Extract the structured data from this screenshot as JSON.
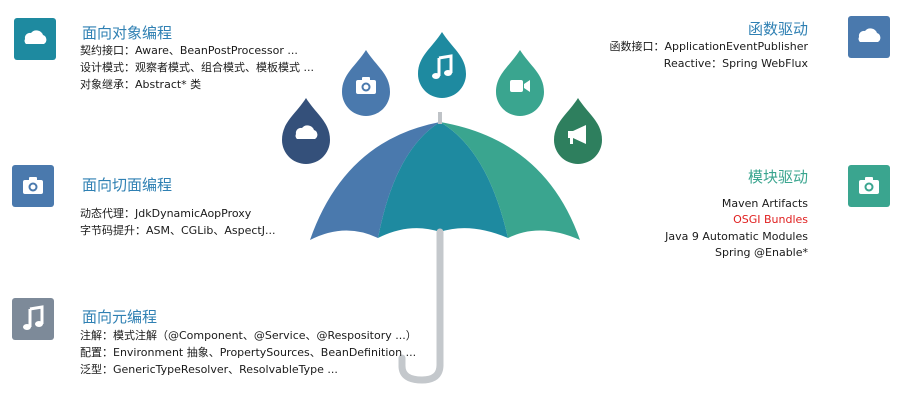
{
  "colors": {
    "blue_dark": "#2f5d8a",
    "blue_mid": "#4a79ad",
    "teal": "#1e8aa0",
    "green": "#3aa58f",
    "green_dark": "#2e7f5e",
    "navy": "#34507a",
    "gray_icon": "#7d8a99",
    "title_blue": "#2f80b3",
    "title_green": "#3aa58f",
    "osgi_red": "#e02020"
  },
  "sections": {
    "oop": {
      "title": "面向对象编程",
      "lines": [
        "契约接口：Aware、BeanPostProcessor ...",
        "设计模式：观察者模式、组合模式、模板模式 ...",
        "对象继承：Abstract* 类"
      ]
    },
    "aop": {
      "title": "面向切面编程",
      "lines": [
        "动态代理：JdkDynamicAopProxy",
        "字节码提升：ASM、CGLib、AspectJ..."
      ]
    },
    "meta": {
      "title": "面向元编程",
      "lines": [
        "注解：模式注解（@Component、@Service、@Respository ...）",
        "配置：Environment 抽象、PropertySources、BeanDefinition ...",
        "泛型：GenericTypeResolver、ResolvableType ..."
      ]
    },
    "func": {
      "title": "函数驱动",
      "lines": [
        "函数接口：ApplicationEventPublisher",
        "Reactive：Spring WebFlux"
      ]
    },
    "module": {
      "title": "模块驱动",
      "lines": [
        "Maven Artifacts",
        "OSGI Bundles",
        "Java 9 Automatic Modules",
        "Spring @Enable*"
      ]
    }
  },
  "icons": {
    "oop": "cloud-icon",
    "aop": "camera-icon",
    "meta": "music-note-icon",
    "func": "cloud-icon",
    "module": "camera-icon",
    "drops": [
      "cloud-icon",
      "camera-icon",
      "music-note-icon",
      "video-camera-icon",
      "megaphone-icon"
    ]
  }
}
